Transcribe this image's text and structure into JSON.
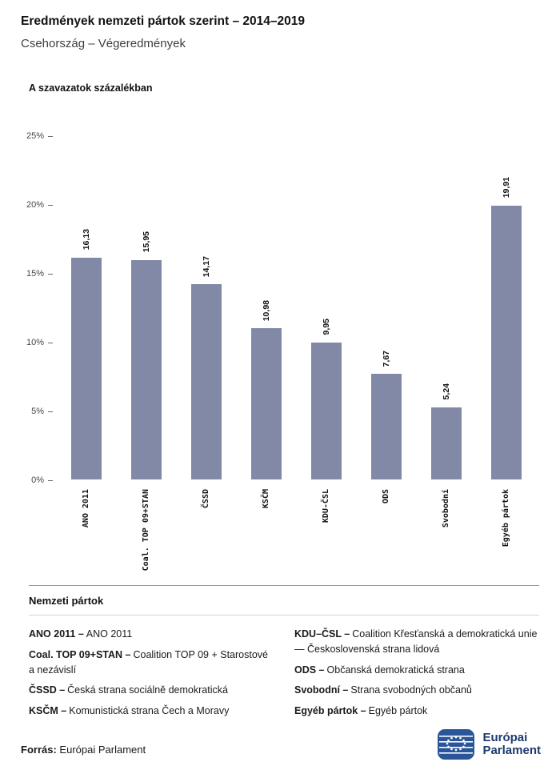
{
  "header": {
    "title": "Eredmények nemzeti pártok szerint – 2014–2019",
    "subtitle": "Csehország – Végeredmények"
  },
  "chart_data": {
    "type": "bar",
    "title": "A szavazatok százalékban",
    "categories": [
      "ANO 2011",
      "Coal. TOP 09+STAN",
      "ČSSD",
      "KSČM",
      "KDU-ČSL",
      "ODS",
      "Svobodní",
      "Egyéb pártok"
    ],
    "values": [
      16.13,
      15.95,
      14.17,
      10.98,
      9.95,
      7.67,
      5.24,
      19.91
    ],
    "value_labels": [
      "16,13",
      "15,95",
      "14,17",
      "10,98",
      "9,95",
      "7,67",
      "5,24",
      "19,91"
    ],
    "ylim": [
      0,
      25
    ],
    "yticks": [
      "0%",
      "5%",
      "10%",
      "15%",
      "20%",
      "25%"
    ],
    "bar_color": "#8189a6",
    "grid": false,
    "legend_position": "none",
    "xlabel": "",
    "ylabel": "A szavazatok százalékban"
  },
  "legend": {
    "heading": "Nemzeti pártok",
    "columns": [
      [
        {
          "term": "ANO 2011 –",
          "desc": "ANO 2011"
        },
        {
          "term": "Coal. TOP 09+STAN –",
          "desc": "Coalition TOP 09 + Starostové a nezávislí"
        },
        {
          "term": "ČSSD –",
          "desc": "Česká strana sociálně demokratická"
        },
        {
          "term": "KSČM –",
          "desc": "Komunistická strana Čech a Moravy"
        }
      ],
      [
        {
          "term": "KDU–ČSL –",
          "desc": "Coalition Křesťanská a demokratická unie — Československá strana lidová"
        },
        {
          "term": "ODS –",
          "desc": "Občanská demokratická strana"
        },
        {
          "term": "Svobodní –",
          "desc": "Strana svobodných občanů"
        },
        {
          "term": "Egyéb pártok –",
          "desc": "Egyéb pártok"
        }
      ]
    ]
  },
  "footer": {
    "source_label": "Forrás:",
    "source_value": "Európai Parlament",
    "logo_line1": "Európai",
    "logo_line2": "Parlament"
  }
}
